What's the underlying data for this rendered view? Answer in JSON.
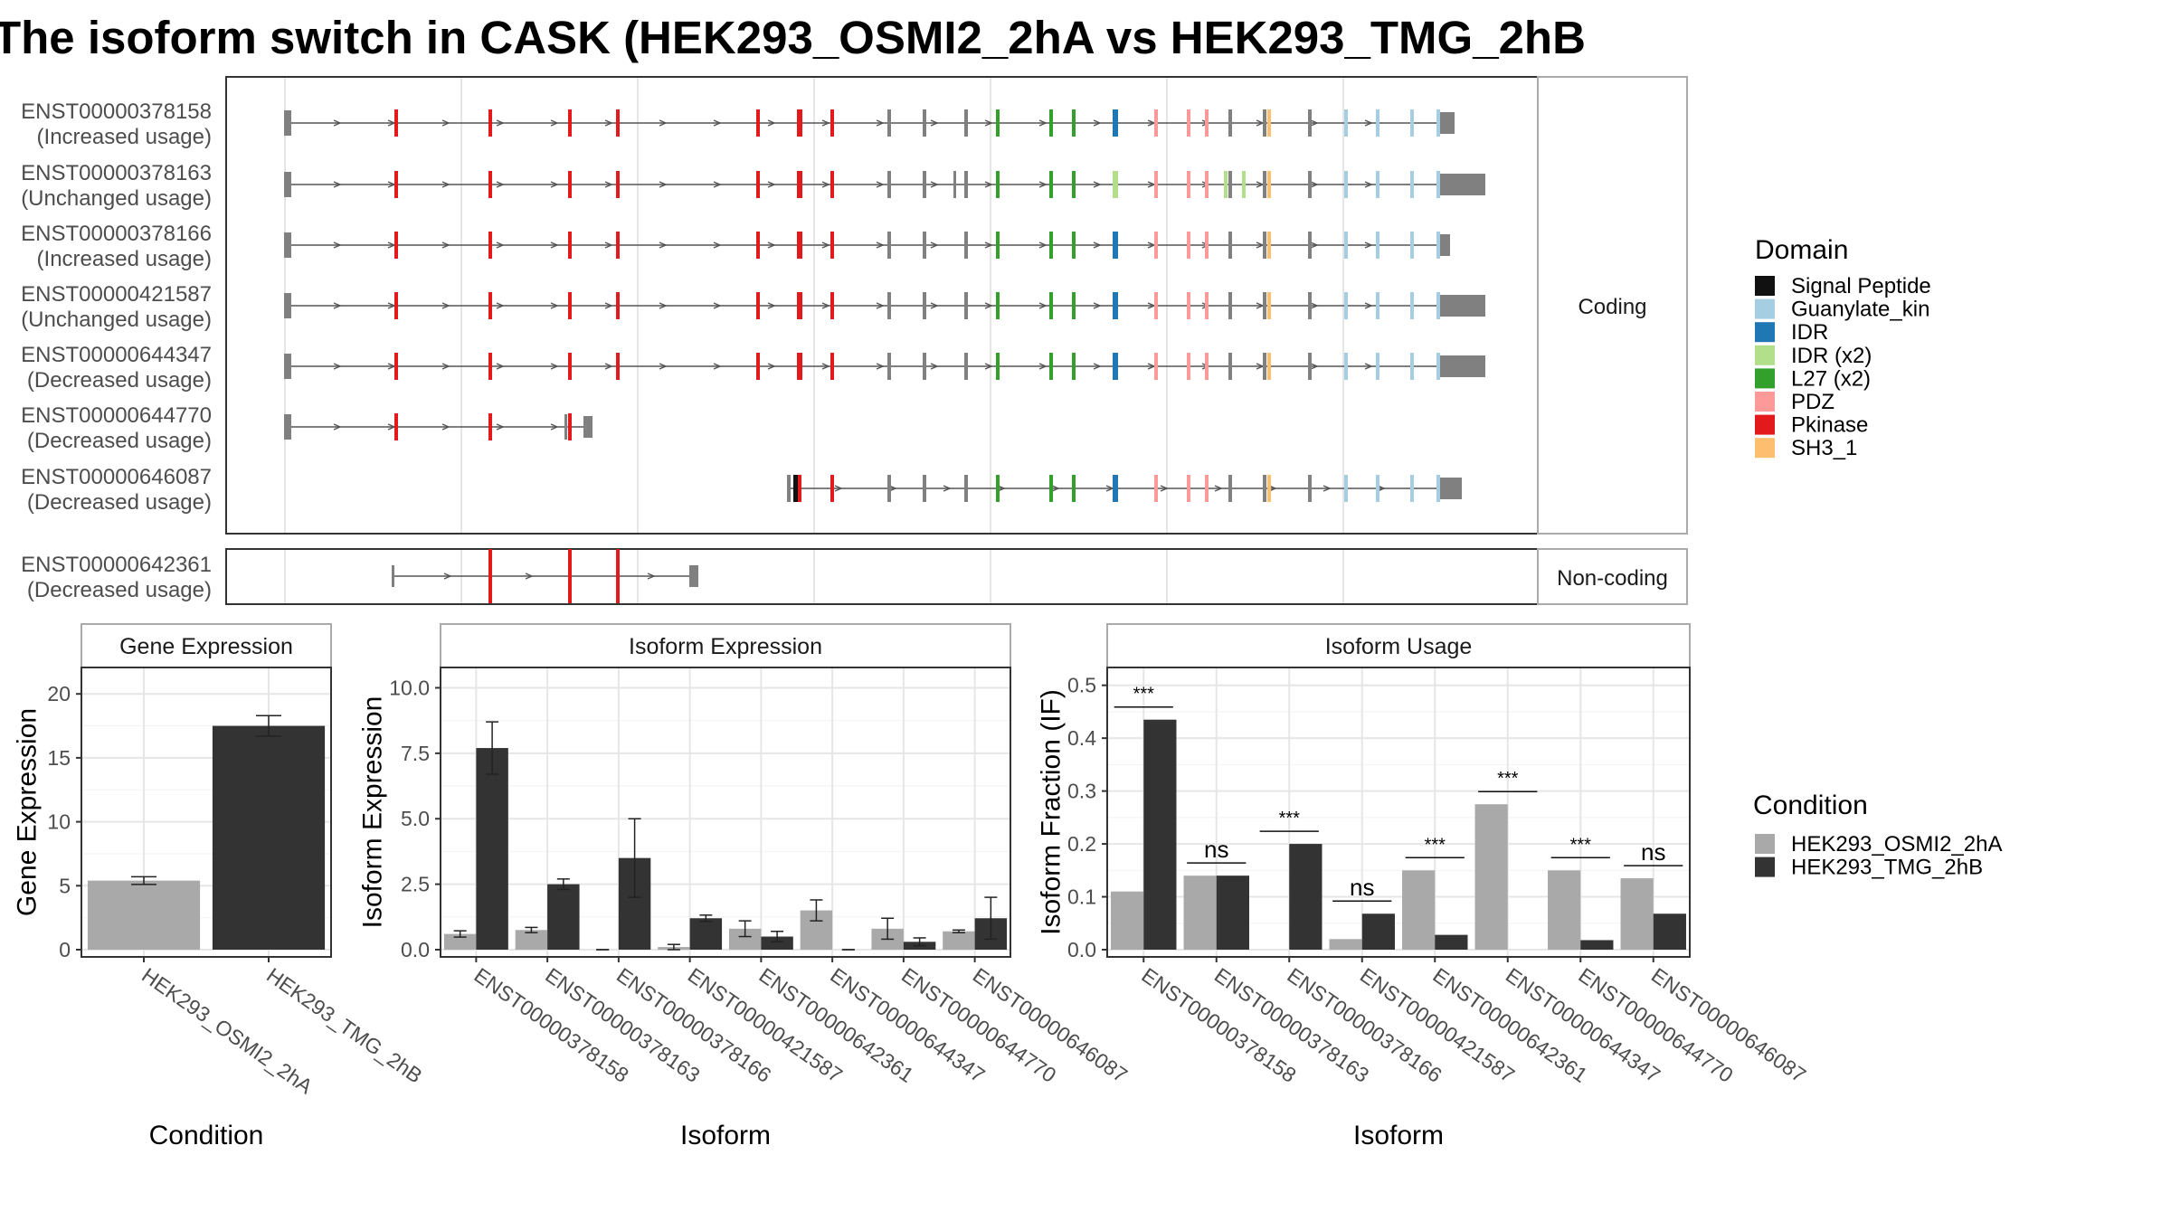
{
  "title": "The isoform switch in CASK (HEK293_OSMI2_2hA vs HEK293_TMG_2hB",
  "colors": {
    "Signal Peptide": "#111111",
    "Guanylate_kin": "#a6cee3",
    "IDR": "#1f78b4",
    "IDR (x2)": "#b2df8a",
    "L27 (x2)": "#33a02c",
    "PDZ": "#fb9a99",
    "Pkinase": "#e31a1c",
    "SH3_1": "#fdbf6f",
    "exon": "#808080",
    "cond_a": "#a9a9a9",
    "cond_b": "#333333",
    "panel_border": "#333333",
    "strip_border": "#aaaaaa",
    "grid": "#e6e6e6"
  },
  "structure": {
    "coding_label": "Coding",
    "noncoding_label": "Non-coding",
    "transcripts": [
      {
        "id": "ENST00000378158",
        "usage": "(Increased usage)",
        "group": "coding"
      },
      {
        "id": "ENST00000378163",
        "usage": "(Unchanged usage)",
        "group": "coding"
      },
      {
        "id": "ENST00000378166",
        "usage": "(Increased usage)",
        "group": "coding"
      },
      {
        "id": "ENST00000421587",
        "usage": "(Unchanged usage)",
        "group": "coding"
      },
      {
        "id": "ENST00000644347",
        "usage": "(Decreased usage)",
        "group": "coding"
      },
      {
        "id": "ENST00000644770",
        "usage": "(Decreased usage)",
        "group": "coding"
      },
      {
        "id": "ENST00000646087",
        "usage": "(Decreased usage)",
        "group": "coding"
      },
      {
        "id": "ENST00000642361",
        "usage": "(Decreased usage)",
        "group": "noncoding"
      }
    ]
  },
  "legend_domain": {
    "title": "Domain",
    "items": [
      "Signal Peptide",
      "Guanylate_kin",
      "IDR",
      "IDR (x2)",
      "L27 (x2)",
      "PDZ",
      "Pkinase",
      "SH3_1"
    ]
  },
  "legend_condition": {
    "title": "Condition",
    "items": [
      "HEK293_OSMI2_2hA",
      "HEK293_TMG_2hB"
    ]
  },
  "chart_data": [
    {
      "type": "bar",
      "title": "Gene Expression",
      "xlabel": "Condition",
      "ylabel": "Gene Expression",
      "ylim": [
        0,
        21.5
      ],
      "yticks": [
        0,
        5,
        10,
        15,
        20
      ],
      "categories": [
        "HEK293_OSMI2_2hA",
        "HEK293_TMG_2hB"
      ],
      "values": [
        5.4,
        17.5
      ],
      "errors": [
        0.3,
        0.8
      ]
    },
    {
      "type": "bar",
      "title": "Isoform Expression",
      "xlabel": "Isoform",
      "ylabel": "Isoform Expression",
      "ylim": [
        0,
        10.5
      ],
      "yticks": [
        0.0,
        2.5,
        5.0,
        7.5,
        10.0
      ],
      "ytick_labels": [
        "0.0",
        "2.5",
        "5.0",
        "7.5",
        "10.0"
      ],
      "categories": [
        "ENST00000378158",
        "ENST00000378163",
        "ENST00000378166",
        "ENST00000421587",
        "ENST00000642361",
        "ENST00000644347",
        "ENST00000644770",
        "ENST00000646087"
      ],
      "series": [
        {
          "name": "HEK293_OSMI2_2hA",
          "values": [
            0.6,
            0.75,
            0.0,
            0.1,
            0.8,
            1.5,
            0.8,
            0.7
          ],
          "errors": [
            0.12,
            0.1,
            0.0,
            0.1,
            0.3,
            0.4,
            0.4,
            0.05
          ]
        },
        {
          "name": "HEK293_TMG_2hB",
          "values": [
            7.7,
            2.5,
            3.5,
            1.2,
            0.5,
            0.0,
            0.3,
            1.2
          ],
          "errors": [
            1.0,
            0.2,
            1.5,
            0.12,
            0.2,
            0.0,
            0.15,
            0.8
          ]
        }
      ]
    },
    {
      "type": "bar",
      "title": "Isoform Usage",
      "xlabel": "Isoform",
      "ylabel": "Isoform Fraction (IF)",
      "ylim": [
        0,
        0.52
      ],
      "yticks": [
        0.0,
        0.1,
        0.2,
        0.3,
        0.4,
        0.5
      ],
      "ytick_labels": [
        "0.0",
        "0.1",
        "0.2",
        "0.3",
        "0.4",
        "0.5"
      ],
      "categories": [
        "ENST00000378158",
        "ENST00000378163",
        "ENST00000378166",
        "ENST00000421587",
        "ENST00000642361",
        "ENST00000644347",
        "ENST00000644770",
        "ENST00000646087"
      ],
      "series": [
        {
          "name": "HEK293_OSMI2_2hA",
          "values": [
            0.11,
            0.14,
            0.0,
            0.02,
            0.15,
            0.275,
            0.15,
            0.135
          ]
        },
        {
          "name": "HEK293_TMG_2hB",
          "values": [
            0.435,
            0.14,
            0.2,
            0.068,
            0.028,
            0.0,
            0.018,
            0.068
          ]
        }
      ],
      "significance": [
        "***",
        "ns",
        "***",
        "ns",
        "***",
        "***",
        "***",
        "ns"
      ]
    }
  ]
}
